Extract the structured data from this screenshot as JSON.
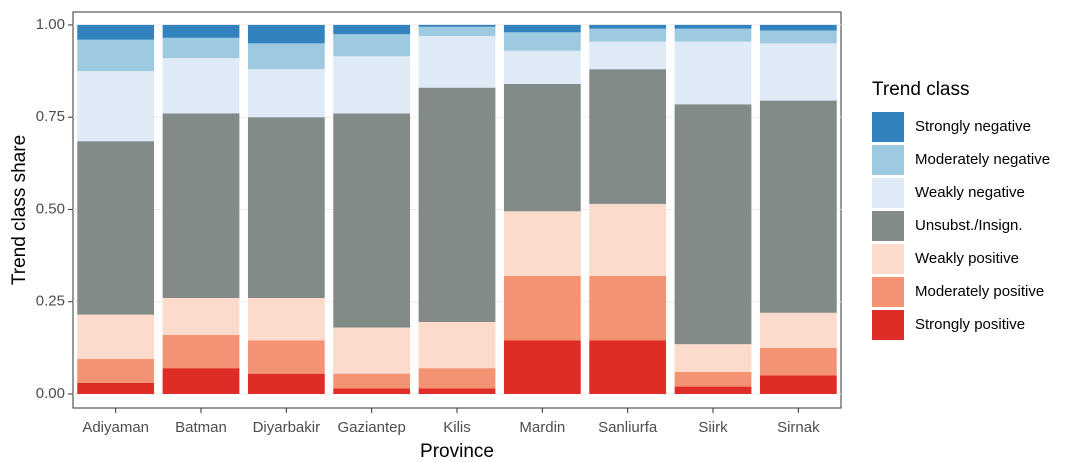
{
  "chart_data": {
    "type": "stacked-bar",
    "x_label": "Province",
    "y_label": "Trend class share",
    "legend_title": "Trend class",
    "categories": [
      "Adiyaman",
      "Batman",
      "Diyarbakir",
      "Gaziantep",
      "Kilis",
      "Mardin",
      "Sanliurfa",
      "Siirk",
      "Sirnak"
    ],
    "series": [
      {
        "name": "Strongly negative",
        "color": "#3182bd",
        "values": [
          0.04,
          0.035,
          0.05,
          0.025,
          0.005,
          0.02,
          0.01,
          0.01,
          0.015
        ]
      },
      {
        "name": "Moderately negative",
        "color": "#9ecae1",
        "values": [
          0.085,
          0.055,
          0.07,
          0.06,
          0.025,
          0.05,
          0.035,
          0.035,
          0.035
        ]
      },
      {
        "name": "Weakly negative",
        "color": "#deebf7",
        "values": [
          0.19,
          0.15,
          0.13,
          0.155,
          0.14,
          0.09,
          0.075,
          0.17,
          0.155
        ]
      },
      {
        "name": "Unsubst./Insign.",
        "color": "#838b89",
        "values": [
          0.47,
          0.5,
          0.49,
          0.58,
          0.635,
          0.345,
          0.365,
          0.65,
          0.575
        ]
      },
      {
        "name": "Weakly positive",
        "color": "#fcdbcd",
        "values": [
          0.12,
          0.1,
          0.115,
          0.125,
          0.125,
          0.175,
          0.195,
          0.075,
          0.095
        ]
      },
      {
        "name": "Moderately positive",
        "color": "#f49274",
        "values": [
          0.065,
          0.09,
          0.09,
          0.04,
          0.055,
          0.175,
          0.175,
          0.04,
          0.075
        ]
      },
      {
        "name": "Strongly positive",
        "color": "#de2d26",
        "values": [
          0.03,
          0.07,
          0.055,
          0.015,
          0.015,
          0.145,
          0.145,
          0.02,
          0.05
        ]
      }
    ],
    "ylim": [
      -0.038,
      1.035
    ],
    "yticks": [
      {
        "value": 0,
        "label": "0.00"
      },
      {
        "value": 0.25,
        "label": "0.25"
      },
      {
        "value": 0.5,
        "label": "0.50"
      },
      {
        "value": 0.75,
        "label": "0.75"
      },
      {
        "value": 1,
        "label": "1.00"
      }
    ],
    "grid": true,
    "legend": "right"
  }
}
